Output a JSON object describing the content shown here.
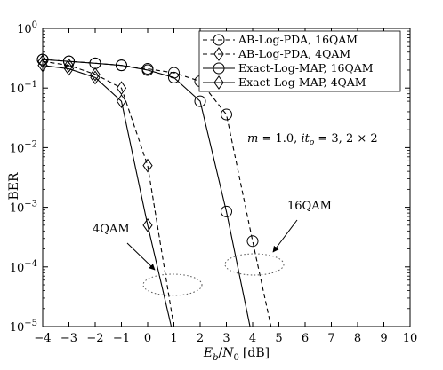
{
  "chart_data": {
    "type": "line",
    "xlabel": "E_b/N_0 [dB]",
    "xlabel_parts": {
      "e": "E",
      "e_sub": "b",
      "slash": "/",
      "n": "N",
      "n_sub": "0",
      "unit": "[dB]"
    },
    "ylabel": "BER",
    "xlim": [
      -4,
      10
    ],
    "ylim": [
      1e-05,
      1
    ],
    "yscale": "log",
    "grid": false,
    "legend_placement": "top-right",
    "x_ticks": [
      -4,
      -3,
      -2,
      -1,
      0,
      1,
      2,
      3,
      4,
      5,
      6,
      7,
      8,
      9,
      10
    ],
    "x_tick_labels": [
      "−4",
      "−3",
      "−2",
      "−1",
      "0",
      "1",
      "2",
      "3",
      "4",
      "5",
      "6",
      "7",
      "8",
      "9",
      "10"
    ],
    "y_ticks": [
      {
        "value": 1,
        "base": "10",
        "exp": "0"
      },
      {
        "value": 0.1,
        "base": "10",
        "exp": "−1"
      },
      {
        "value": 0.01,
        "base": "10",
        "exp": "−2"
      },
      {
        "value": 0.001,
        "base": "10",
        "exp": "−3"
      },
      {
        "value": 0.0001,
        "base": "10",
        "exp": "−4"
      },
      {
        "value": 1e-05,
        "base": "10",
        "exp": "−5"
      }
    ],
    "series": [
      {
        "name": "AB-Log-PDA, 16QAM",
        "line_style": "dashed",
        "marker": "circle",
        "color": "#000000",
        "x": [
          -4,
          -3,
          -2,
          -1,
          0,
          1,
          2,
          3,
          4,
          4.7
        ],
        "y": [
          0.3,
          0.28,
          0.26,
          0.24,
          0.21,
          0.18,
          0.13,
          0.036,
          0.00027,
          1e-05
        ]
      },
      {
        "name": "AB-Log-PDA, 4QAM",
        "line_style": "dashed",
        "marker": "diamond",
        "color": "#000000",
        "x": [
          -4,
          -3,
          -2,
          -1,
          0,
          1
        ],
        "y": [
          0.28,
          0.24,
          0.17,
          0.1,
          0.005,
          1e-05
        ]
      },
      {
        "name": "Exact-Log-MAP, 16QAM",
        "line_style": "solid",
        "marker": "circle",
        "color": "#000000",
        "x": [
          -4,
          -3,
          -2,
          -1,
          0,
          1,
          2,
          3,
          3.9
        ],
        "y": [
          0.3,
          0.28,
          0.26,
          0.24,
          0.2,
          0.15,
          0.06,
          0.00085,
          1e-05
        ]
      },
      {
        "name": "Exact-Log-MAP, 4QAM",
        "line_style": "solid",
        "marker": "diamond",
        "color": "#000000",
        "x": [
          -4,
          -3,
          -2,
          -1,
          0,
          0.9
        ],
        "y": [
          0.24,
          0.21,
          0.15,
          0.06,
          0.0005,
          1e-05
        ]
      }
    ],
    "annotations": {
      "params": "m = 1.0, it_o = 3, 2 × 2",
      "params_parts": {
        "m": "m",
        "eq1": " = 1.0, ",
        "it": "it",
        "sub": "o",
        "rest": " = 3, 2 × 2"
      },
      "label_4qam": "4QAM",
      "label_16qam": "16QAM"
    }
  }
}
